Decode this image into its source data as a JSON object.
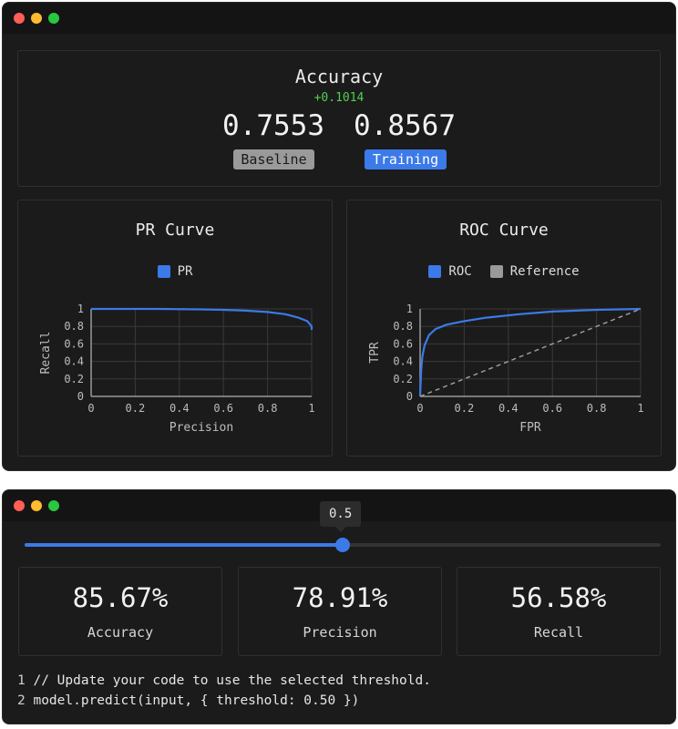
{
  "accuracy_panel": {
    "title": "Accuracy",
    "delta": "+0.1014",
    "baseline_value": "0.7553",
    "training_value": "0.8567",
    "baseline_label": "Baseline",
    "training_label": "Training"
  },
  "colors": {
    "accent": "#3b7ae8",
    "positive": "#4fd14f",
    "reference": "#9a9a9a"
  },
  "chart_data": [
    {
      "type": "line",
      "title": "PR Curve",
      "xlabel": "Precision",
      "ylabel": "Recall",
      "xlim": [
        0,
        1
      ],
      "ylim": [
        0,
        1
      ],
      "xticks": [
        "0",
        "0.2",
        "0.4",
        "0.6",
        "0.8",
        "1"
      ],
      "yticks": [
        "0",
        "0.2",
        "0.4",
        "0.6",
        "0.8",
        "1"
      ],
      "grid": true,
      "legend": "top-center",
      "series": [
        {
          "name": "PR",
          "color": "#3b7ae8",
          "x": [
            0,
            0.3,
            0.5,
            0.6,
            0.7,
            0.8,
            0.88,
            0.94,
            0.98,
            1.0,
            1.0
          ],
          "y": [
            1.0,
            1.0,
            0.995,
            0.99,
            0.98,
            0.965,
            0.94,
            0.9,
            0.86,
            0.8,
            0.76
          ]
        }
      ]
    },
    {
      "type": "line",
      "title": "ROC Curve",
      "xlabel": "FPR",
      "ylabel": "TPR",
      "xlim": [
        0,
        1
      ],
      "ylim": [
        0,
        1
      ],
      "xticks": [
        "0",
        "0.2",
        "0.4",
        "0.6",
        "0.8",
        "1"
      ],
      "yticks": [
        "0",
        "0.2",
        "0.4",
        "0.6",
        "0.8",
        "1"
      ],
      "grid": true,
      "legend": "top-center",
      "series": [
        {
          "name": "ROC",
          "color": "#3b7ae8",
          "x": [
            0,
            0.005,
            0.01,
            0.02,
            0.04,
            0.07,
            0.12,
            0.2,
            0.3,
            0.45,
            0.6,
            0.8,
            1.0
          ],
          "y": [
            0,
            0.3,
            0.45,
            0.58,
            0.7,
            0.77,
            0.82,
            0.86,
            0.9,
            0.94,
            0.97,
            0.99,
            1.0
          ]
        },
        {
          "name": "Reference",
          "color": "#9a9a9a",
          "dashed": true,
          "x": [
            0,
            1
          ],
          "y": [
            0,
            1
          ]
        }
      ]
    }
  ],
  "threshold": {
    "value": 0.5,
    "label": "0.5"
  },
  "metrics": [
    {
      "value": "85.67%",
      "label": "Accuracy"
    },
    {
      "value": "78.91%",
      "label": "Precision"
    },
    {
      "value": "56.58%",
      "label": "Recall"
    }
  ],
  "code": [
    {
      "line": "1",
      "text": "// Update your code to use the selected threshold."
    },
    {
      "line": "2",
      "text": "model.predict(input, { threshold: 0.50 })"
    }
  ]
}
